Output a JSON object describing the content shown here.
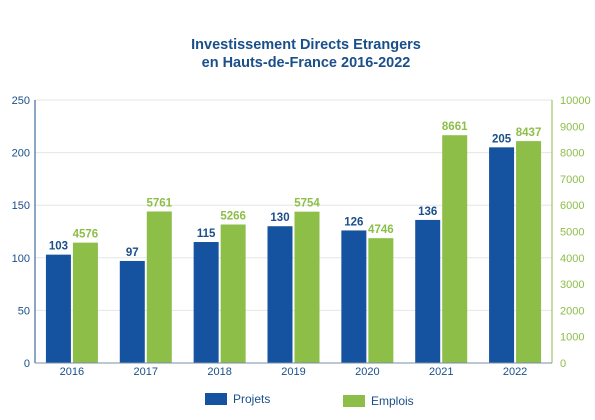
{
  "chart_data": {
    "type": "bar",
    "title_lines": [
      "Investissement Directs Etrangers",
      "en Hauts-de-France 2016-2022"
    ],
    "categories": [
      "2016",
      "2017",
      "2018",
      "2019",
      "2020",
      "2021",
      "2022"
    ],
    "series": [
      {
        "name": "Projets",
        "axis": "left",
        "color": "#1553a0",
        "label_color": "#1a4f8a",
        "values": [
          103,
          97,
          115,
          130,
          126,
          136,
          205
        ]
      },
      {
        "name": "Emplois",
        "axis": "right",
        "color": "#8cbe48",
        "label_color": "#8cbe48",
        "values": [
          4576,
          5761,
          5266,
          5754,
          4746,
          8661,
          8437
        ]
      }
    ],
    "y_left": {
      "min": 0,
      "max": 250,
      "ticks": [
        "0",
        "50",
        "100",
        "150",
        "200",
        "250"
      ],
      "color": "#1a4f8a"
    },
    "y_right": {
      "min": 0,
      "max": 10000,
      "ticks": [
        "0",
        "1000",
        "2000",
        "3000",
        "4000",
        "5000",
        "6000",
        "7000",
        "8000",
        "9000",
        "10000"
      ],
      "color": "#8cbe48"
    },
    "grid": true,
    "legend_position": "bottom"
  }
}
